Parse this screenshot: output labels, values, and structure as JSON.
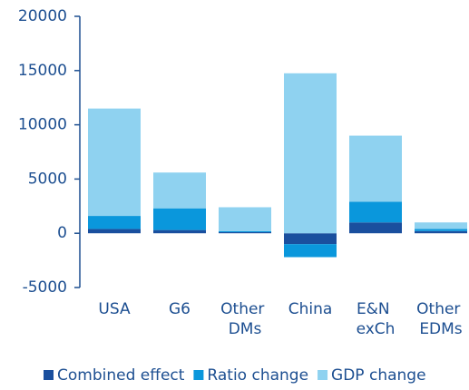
{
  "chart_data": {
    "type": "stacked_bar",
    "categories": [
      "USA",
      "G6",
      "Other DMs",
      "China",
      "E&N exCh",
      "Other EDMs"
    ],
    "series": [
      {
        "name": "Combined effect",
        "color": "#1a4f9e",
        "values": [
          400,
          300,
          100,
          -1000,
          1000,
          200
        ]
      },
      {
        "name": "Ratio change",
        "color": "#0a97dc",
        "values": [
          1200,
          2000,
          100,
          -1200,
          1900,
          200
        ]
      },
      {
        "name": "GDP change",
        "color": "#8fd2f0",
        "values": [
          9900,
          3300,
          2200,
          14750,
          6100,
          600
        ]
      }
    ],
    "ylim": [
      -5000,
      20000
    ],
    "yticks": [
      -5000,
      0,
      5000,
      10000,
      15000,
      20000
    ],
    "legend": "bottom"
  }
}
